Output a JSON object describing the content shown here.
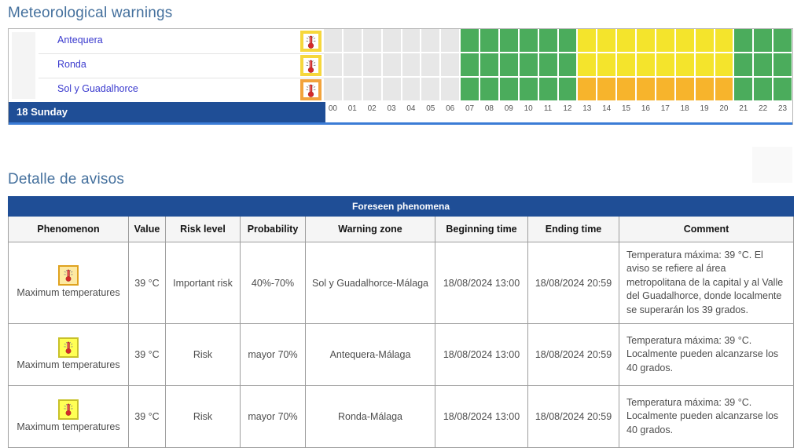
{
  "page": {
    "section1_title": "Meteorological warnings",
    "section2_title": "Detalle de avisos"
  },
  "colors": {
    "risk_none": "#e7e7e7",
    "risk_green": "#4bac5c",
    "risk_yellow": "#f4e42c",
    "risk_orange": "#f7b42c",
    "header_blue": "#1f4e96",
    "accent_blue": "#3b7cd6",
    "zone_link": "#3a3ace"
  },
  "timeline": {
    "day_label": "18 Sunday",
    "hours": [
      "00",
      "01",
      "02",
      "03",
      "04",
      "05",
      "06",
      "07",
      "08",
      "09",
      "10",
      "11",
      "12",
      "13",
      "14",
      "15",
      "16",
      "17",
      "18",
      "19",
      "20",
      "21",
      "22",
      "23"
    ],
    "rows": [
      {
        "zone": "Antequera",
        "icon": "thermometer-icon",
        "icon_level": "yellow",
        "cells": [
          "none",
          "none",
          "none",
          "none",
          "none",
          "none",
          "none",
          "green",
          "green",
          "green",
          "green",
          "green",
          "green",
          "yellow",
          "yellow",
          "yellow",
          "yellow",
          "yellow",
          "yellow",
          "yellow",
          "yellow",
          "green",
          "green",
          "green"
        ]
      },
      {
        "zone": "Ronda",
        "icon": "thermometer-icon",
        "icon_level": "yellow",
        "cells": [
          "none",
          "none",
          "none",
          "none",
          "none",
          "none",
          "none",
          "green",
          "green",
          "green",
          "green",
          "green",
          "green",
          "yellow",
          "yellow",
          "yellow",
          "yellow",
          "yellow",
          "yellow",
          "yellow",
          "yellow",
          "green",
          "green",
          "green"
        ]
      },
      {
        "zone": "Sol y Guadalhorce",
        "icon": "thermometer-icon",
        "icon_level": "orange",
        "cells": [
          "none",
          "none",
          "none",
          "none",
          "none",
          "none",
          "none",
          "green",
          "green",
          "green",
          "green",
          "green",
          "green",
          "orange",
          "orange",
          "orange",
          "orange",
          "orange",
          "orange",
          "orange",
          "orange",
          "green",
          "green",
          "green"
        ]
      }
    ]
  },
  "detail_table": {
    "header": "Foreseen phenomena",
    "columns": [
      "Phenomenon",
      "Value",
      "Risk level",
      "Probability",
      "Warning zone",
      "Beginning time",
      "Ending time",
      "Comment"
    ],
    "rows": [
      {
        "phenomenon": "Maximum temperatures",
        "icon_level": "orange",
        "value": "39 °C",
        "risk_level": "Important risk",
        "probability": "40%-70%",
        "warning_zone": "Sol y Guadalhorce-Málaga",
        "beginning_time": "18/08/2024 13:00",
        "ending_time": "18/08/2024 20:59",
        "comment": "Temperatura máxima: 39 °C. El aviso se refiere al área metropolitana de la capital y al Valle del Guadalhorce, donde localmente se superarán los 39 grados."
      },
      {
        "phenomenon": "Maximum temperatures",
        "icon_level": "yellow",
        "value": "39 °C",
        "risk_level": "Risk",
        "probability": "mayor 70%",
        "warning_zone": "Antequera-Málaga",
        "beginning_time": "18/08/2024 13:00",
        "ending_time": "18/08/2024 20:59",
        "comment": "Temperatura máxima: 39 °C. Localmente pueden alcanzarse los 40 grados."
      },
      {
        "phenomenon": "Maximum temperatures",
        "icon_level": "yellow",
        "value": "39 °C",
        "risk_level": "Risk",
        "probability": "mayor 70%",
        "warning_zone": "Ronda-Málaga",
        "beginning_time": "18/08/2024 13:00",
        "ending_time": "18/08/2024 20:59",
        "comment": "Temperatura máxima: 39 °C. Localmente pueden alcanzarse los 40 grados."
      }
    ]
  }
}
